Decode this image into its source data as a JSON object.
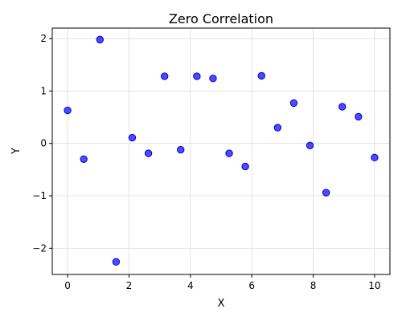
{
  "chart_data": {
    "type": "scatter",
    "title": "Zero Correlation",
    "xlabel": "X",
    "ylabel": "Y",
    "xlim": [
      -0.5,
      10.5
    ],
    "ylim": [
      -2.5,
      2.2
    ],
    "xticks": [
      0,
      2,
      4,
      6,
      8,
      10
    ],
    "xtick_labels": [
      "0",
      "2",
      "4",
      "6",
      "8",
      "10"
    ],
    "yticks": [
      -2,
      -1,
      0,
      1,
      2
    ],
    "ytick_labels": [
      "−2",
      "−1",
      "0",
      "1",
      "2"
    ],
    "grid": true,
    "point_color": "#0000ff",
    "point_alpha": 0.7,
    "x": [
      0.0,
      0.526,
      1.053,
      1.579,
      2.105,
      2.632,
      3.158,
      3.684,
      4.211,
      4.737,
      5.263,
      5.789,
      6.316,
      6.842,
      7.368,
      7.895,
      8.421,
      8.947,
      9.474,
      10.0
    ],
    "y": [
      0.63,
      -0.3,
      1.98,
      -2.26,
      0.11,
      -0.19,
      1.28,
      -0.12,
      1.28,
      1.24,
      -0.19,
      -0.44,
      1.29,
      0.3,
      0.77,
      -0.04,
      -0.94,
      0.7,
      0.51,
      -0.27
    ]
  }
}
